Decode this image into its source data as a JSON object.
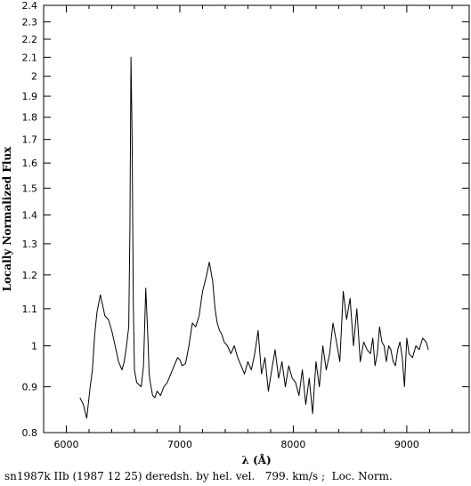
{
  "chart_data": {
    "type": "line",
    "title": "",
    "xlabel": "λ (Å)",
    "ylabel": "Locally Normalized Flux",
    "caption": "sn1987k IIb (1987 12 25) deredsh. by hel. vel.   799. km/s ;  Loc. Norm.",
    "xlim": [
      5800,
      9550
    ],
    "ylim": [
      0.8,
      2.4
    ],
    "y_scale": "log",
    "grid": false,
    "x_ticks": [
      6000,
      7000,
      8000,
      9000
    ],
    "x_tick_labels": [
      "6000",
      "7000",
      "8000",
      "9000"
    ],
    "y_ticks": [
      0.8,
      0.9,
      1.0,
      1.1,
      1.2,
      1.3,
      1.4,
      1.5,
      1.6,
      1.7,
      1.8,
      1.9,
      2.0,
      2.1,
      2.2,
      2.3,
      2.4
    ],
    "y_tick_labels": [
      "0.8",
      "0.9",
      "1",
      "1.1",
      "1.2",
      "1.3",
      "1.4",
      "1.5",
      "1.6",
      "1.7",
      "1.8",
      "1.9",
      "2",
      "2.1",
      "2.2",
      "2.3",
      "2.4"
    ],
    "series": [
      {
        "x": [
          6120,
          6150,
          6180,
          6210,
          6230,
          6250,
          6270,
          6300,
          6320,
          6340,
          6370,
          6400,
          6430,
          6460,
          6490,
          6510,
          6530,
          6550,
          6560,
          6570,
          6580,
          6590,
          6600,
          6620,
          6640,
          6660,
          6680,
          6700,
          6720,
          6730,
          6740,
          6760,
          6780,
          6800,
          6830,
          6860,
          6890,
          6920,
          6950,
          6980,
          7000,
          7020,
          7050,
          7080,
          7110,
          7140,
          7170,
          7200,
          7230,
          7260,
          7290,
          7310,
          7330,
          7350,
          7370,
          7390,
          7420,
          7450,
          7480,
          7510,
          7540,
          7570,
          7600,
          7630,
          7660,
          7690,
          7720,
          7750,
          7780,
          7810,
          7840,
          7870,
          7900,
          7930,
          7960,
          7990,
          8020,
          8050,
          8080,
          8110,
          8140,
          8170,
          8200,
          8230,
          8260,
          8290,
          8320,
          8350,
          8380,
          8410,
          8440,
          8470,
          8500,
          8530,
          8560,
          8590,
          8620,
          8650,
          8680,
          8700,
          8720,
          8740,
          8760,
          8780,
          8800,
          8820,
          8840,
          8860,
          8880,
          8900,
          8920,
          8940,
          8960,
          8980,
          9000,
          9020,
          9050,
          9080,
          9110,
          9140,
          9170,
          9190
        ],
        "y": [
          0.875,
          0.86,
          0.83,
          0.9,
          0.94,
          1.03,
          1.09,
          1.14,
          1.11,
          1.08,
          1.07,
          1.04,
          1.0,
          0.96,
          0.94,
          0.96,
          1.0,
          1.05,
          1.35,
          2.1,
          1.7,
          1.12,
          0.94,
          0.91,
          0.905,
          0.9,
          0.95,
          1.16,
          1.01,
          0.93,
          0.91,
          0.88,
          0.875,
          0.89,
          0.88,
          0.9,
          0.91,
          0.93,
          0.95,
          0.97,
          0.965,
          0.95,
          0.955,
          1.0,
          1.06,
          1.05,
          1.08,
          1.15,
          1.19,
          1.24,
          1.18,
          1.1,
          1.06,
          1.04,
          1.03,
          1.01,
          1.0,
          0.98,
          1.0,
          0.97,
          0.95,
          0.93,
          0.96,
          0.94,
          0.98,
          1.04,
          0.93,
          0.97,
          0.89,
          0.94,
          0.99,
          0.92,
          0.96,
          0.9,
          0.95,
          0.92,
          0.91,
          0.88,
          0.94,
          0.86,
          0.92,
          0.84,
          0.96,
          0.9,
          1.0,
          0.94,
          0.98,
          1.06,
          1.01,
          0.96,
          1.15,
          1.07,
          1.13,
          1.0,
          1.1,
          0.96,
          1.01,
          0.99,
          0.98,
          1.02,
          0.95,
          0.98,
          1.05,
          1.01,
          1.0,
          0.96,
          1.0,
          0.99,
          0.96,
          0.95,
          0.99,
          1.01,
          0.97,
          0.9,
          1.02,
          0.98,
          0.97,
          1.0,
          0.99,
          1.02,
          1.01,
          0.99
        ]
      }
    ]
  }
}
